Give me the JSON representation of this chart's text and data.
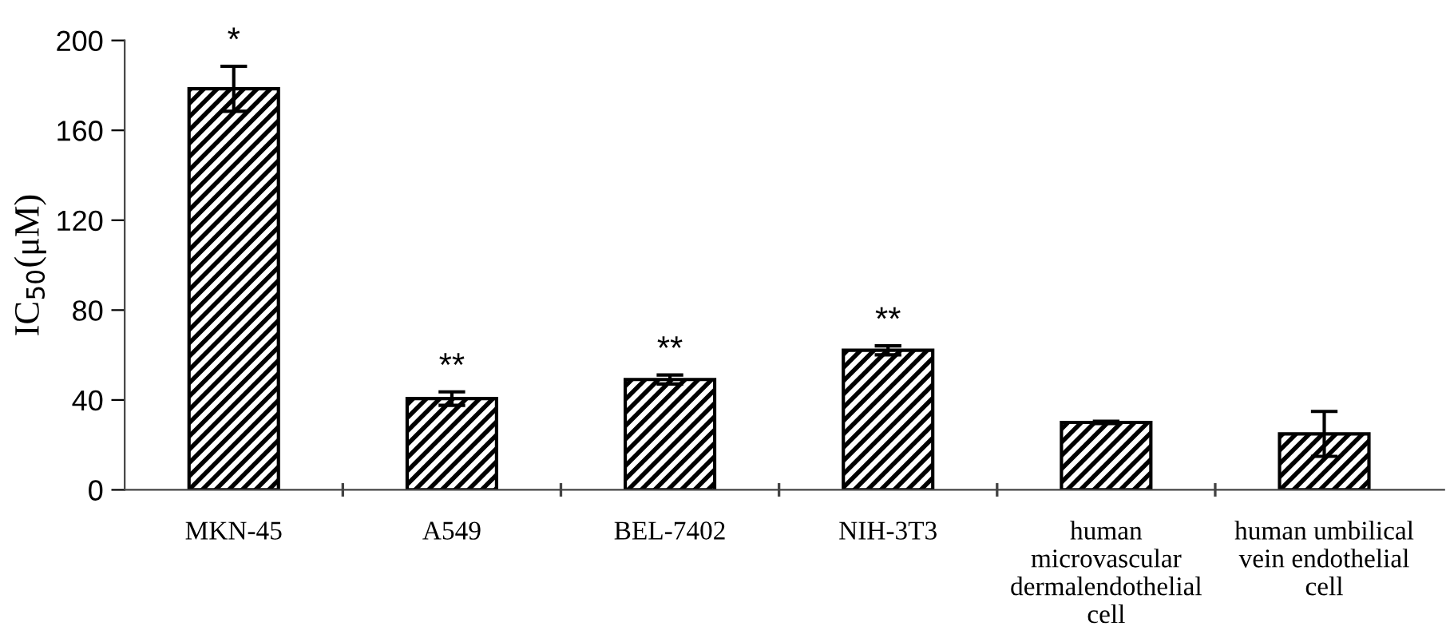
{
  "chart_data": {
    "type": "bar",
    "categories": [
      "MKN-45",
      "A549",
      "BEL-7402",
      "NIH-3T3",
      "human\nmicrovascular\ndermalendothelial\ncell",
      "human umbilical\nvein endothelial\ncell"
    ],
    "values": [
      178.5,
      40.6,
      49.1,
      62.1,
      30,
      24.9
    ],
    "errors": [
      10,
      3,
      2,
      2,
      0.5,
      10
    ],
    "color": "#000000",
    "ylabel": "IC$_{50}$(μM)",
    "ylim": [
      0,
      200
    ],
    "yticks": [
      0,
      40,
      80,
      120,
      160,
      200
    ],
    "annotations": [
      "*",
      "**",
      "**",
      "**"
    ],
    "grid": false,
    "legend": false
  }
}
